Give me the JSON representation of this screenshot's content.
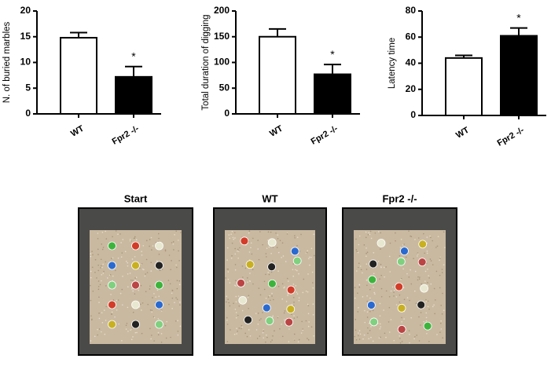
{
  "chart_data": [
    {
      "type": "bar",
      "ylabel": "N. of buried marbles",
      "categories": [
        "WT",
        "Fpr2 -/-"
      ],
      "values": [
        14.8,
        7.2
      ],
      "errors": [
        1.0,
        2.0
      ],
      "colors": [
        "#ffffff",
        "#000000"
      ],
      "ylim": [
        0,
        20
      ],
      "yticks": [
        0,
        5,
        10,
        15,
        20
      ],
      "annotations": [
        {
          "text": "*",
          "x": "Fpr2 -/-"
        }
      ]
    },
    {
      "type": "bar",
      "ylabel": "Total duration of digging",
      "categories": [
        "WT",
        "Fpr2 -/-"
      ],
      "values": [
        150,
        77
      ],
      "errors": [
        15,
        19
      ],
      "colors": [
        "#ffffff",
        "#000000"
      ],
      "ylim": [
        0,
        200
      ],
      "yticks": [
        0,
        50,
        100,
        150,
        200
      ],
      "annotations": [
        {
          "text": "*",
          "x": "Fpr2 -/-"
        }
      ]
    },
    {
      "type": "bar",
      "ylabel": "Latency time",
      "categories": [
        "WT",
        "Fpr2 -/-"
      ],
      "values": [
        44,
        61
      ],
      "errors": [
        2,
        6
      ],
      "colors": [
        "#ffffff",
        "#000000"
      ],
      "ylim": [
        0,
        80
      ],
      "yticks": [
        0,
        20,
        40,
        60,
        80
      ],
      "annotations": [
        {
          "text": "*",
          "x": "Fpr2 -/-"
        }
      ]
    }
  ],
  "photos": [
    {
      "title": "Start"
    },
    {
      "title": "WT"
    },
    {
      "title": "Fpr2 -/-"
    }
  ]
}
